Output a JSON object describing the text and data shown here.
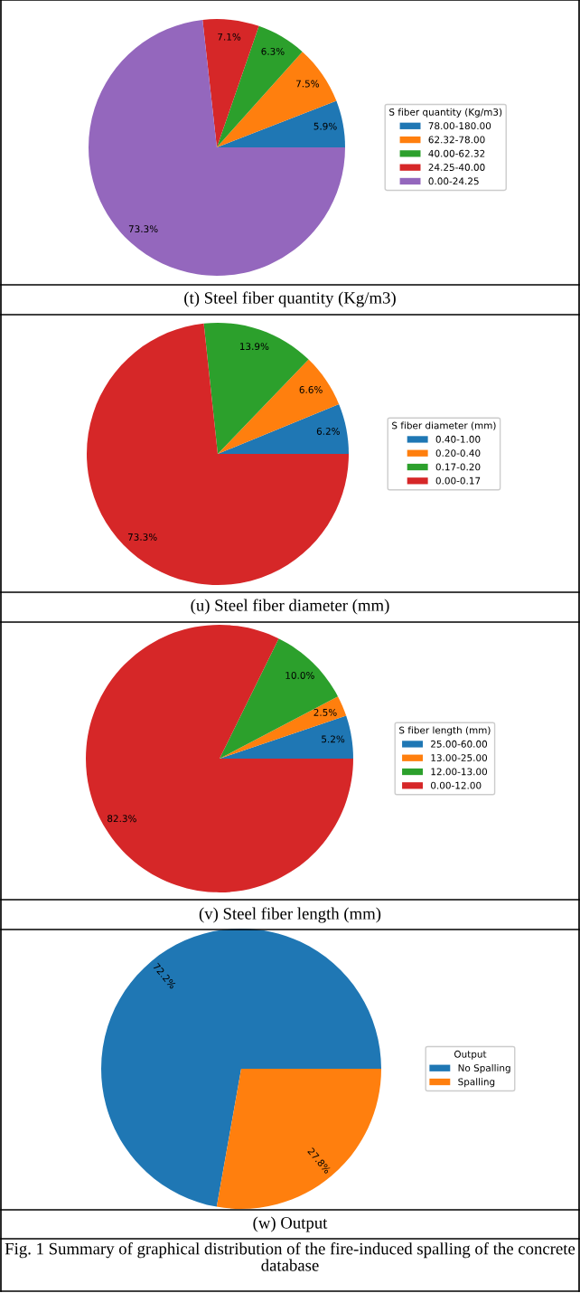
{
  "chart_data": [
    {
      "type": "pie",
      "title": "(t) Steel fiber quantity (Kg/m3)",
      "legend_title": "S fiber quantity (Kg/m3)",
      "legend": "right",
      "categories": [
        "78.00-180.00",
        "62.32-78.00",
        "40.00-62.32",
        "24.25-40.00",
        "0.00-24.25"
      ],
      "values": [
        5.9,
        7.5,
        6.3,
        7.1,
        73.3
      ],
      "value_labels": [
        "5.9%",
        "7.5%",
        "6.3%",
        "7.1%",
        "73.3%"
      ],
      "colors": [
        "#1f77b4",
        "#ff7f0e",
        "#2ca02c",
        "#d62728",
        "#9467bd"
      ]
    },
    {
      "type": "pie",
      "title": "(u) Steel fiber diameter (mm)",
      "legend_title": "S fiber diameter (mm)",
      "legend": "right",
      "categories": [
        "0.40-1.00",
        "0.20-0.40",
        "0.17-0.20",
        "0.00-0.17"
      ],
      "values": [
        6.2,
        6.6,
        13.9,
        73.3
      ],
      "value_labels": [
        "6.2%",
        "6.6%",
        "13.9%",
        "73.3%"
      ],
      "colors": [
        "#1f77b4",
        "#ff7f0e",
        "#2ca02c",
        "#d62728"
      ]
    },
    {
      "type": "pie",
      "title": "(v) Steel fiber length (mm)",
      "legend_title": "S fiber length (mm)",
      "legend": "right",
      "categories": [
        "25.00-60.00",
        "13.00-25.00",
        "12.00-13.00",
        "0.00-12.00"
      ],
      "values": [
        5.2,
        2.5,
        10.0,
        82.3
      ],
      "value_labels": [
        "5.2%",
        "2.5%",
        "10.0%",
        "82.3%"
      ],
      "colors": [
        "#1f77b4",
        "#ff7f0e",
        "#2ca02c",
        "#d62728"
      ]
    },
    {
      "type": "pie",
      "title": "(w) Output",
      "legend_title": "Output",
      "legend": "right",
      "categories": [
        "No Spalling",
        "Spalling"
      ],
      "values": [
        72.2,
        27.8
      ],
      "value_labels": [
        "72.2%",
        "27.8%"
      ],
      "colors": [
        "#1f77b4",
        "#ff7f0e"
      ],
      "annotations": [
        "Fig. 1 Summary of graphical distribution of the fire-induced spalling of the concrete database"
      ]
    }
  ]
}
